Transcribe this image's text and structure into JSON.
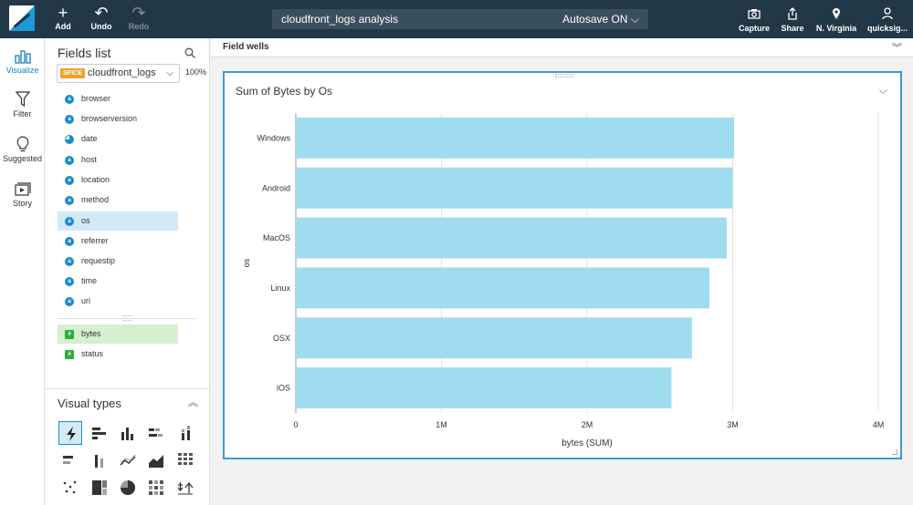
{
  "topbar": {
    "add": "Add",
    "undo": "Undo",
    "redo": "Redo",
    "analysis_title": "cloudfront_logs analysis",
    "autosave": "Autosave ON",
    "capture": "Capture",
    "share": "Share",
    "region": "N. Virginia",
    "user": "quicksig..."
  },
  "rail": {
    "visualize": "Visualize",
    "filter": "Filter",
    "suggested": "Suggested",
    "story": "Story"
  },
  "fields": {
    "title": "Fields list",
    "spice": "SPICE",
    "dataset": "cloudfront_logs",
    "percent": "100%",
    "dimensions": [
      {
        "label": "browser",
        "badge": "a"
      },
      {
        "label": "browserversion",
        "badge": "a"
      },
      {
        "label": "date",
        "badge": ""
      },
      {
        "label": "host",
        "badge": "a"
      },
      {
        "label": "location",
        "badge": "a"
      },
      {
        "label": "method",
        "badge": "a"
      },
      {
        "label": "os",
        "badge": "a"
      },
      {
        "label": "referrer",
        "badge": "a"
      },
      {
        "label": "requestip",
        "badge": "a"
      },
      {
        "label": "time",
        "badge": "a"
      },
      {
        "label": "uri",
        "badge": "a"
      }
    ],
    "measures": [
      {
        "label": "bytes",
        "badge": "#"
      },
      {
        "label": "status",
        "badge": "#"
      }
    ]
  },
  "visual_types": {
    "title": "Visual types"
  },
  "field_wells": {
    "label": "Field wells"
  },
  "visual": {
    "title": "Sum of Bytes by Os"
  },
  "chart_data": {
    "type": "bar",
    "orientation": "horizontal",
    "categories": [
      "Windows",
      "Android",
      "MacOS",
      "Linux",
      "OSX",
      "iOS"
    ],
    "values": [
      3010000,
      3000000,
      2960000,
      2840000,
      2720000,
      2580000
    ],
    "xlabel": "bytes (SUM)",
    "ylabel": "os",
    "xlim": [
      0,
      4000000
    ],
    "xticks": [
      "0",
      "1M",
      "2M",
      "3M",
      "4M"
    ],
    "bar_color": "#a0dcf0",
    "grid": true
  }
}
